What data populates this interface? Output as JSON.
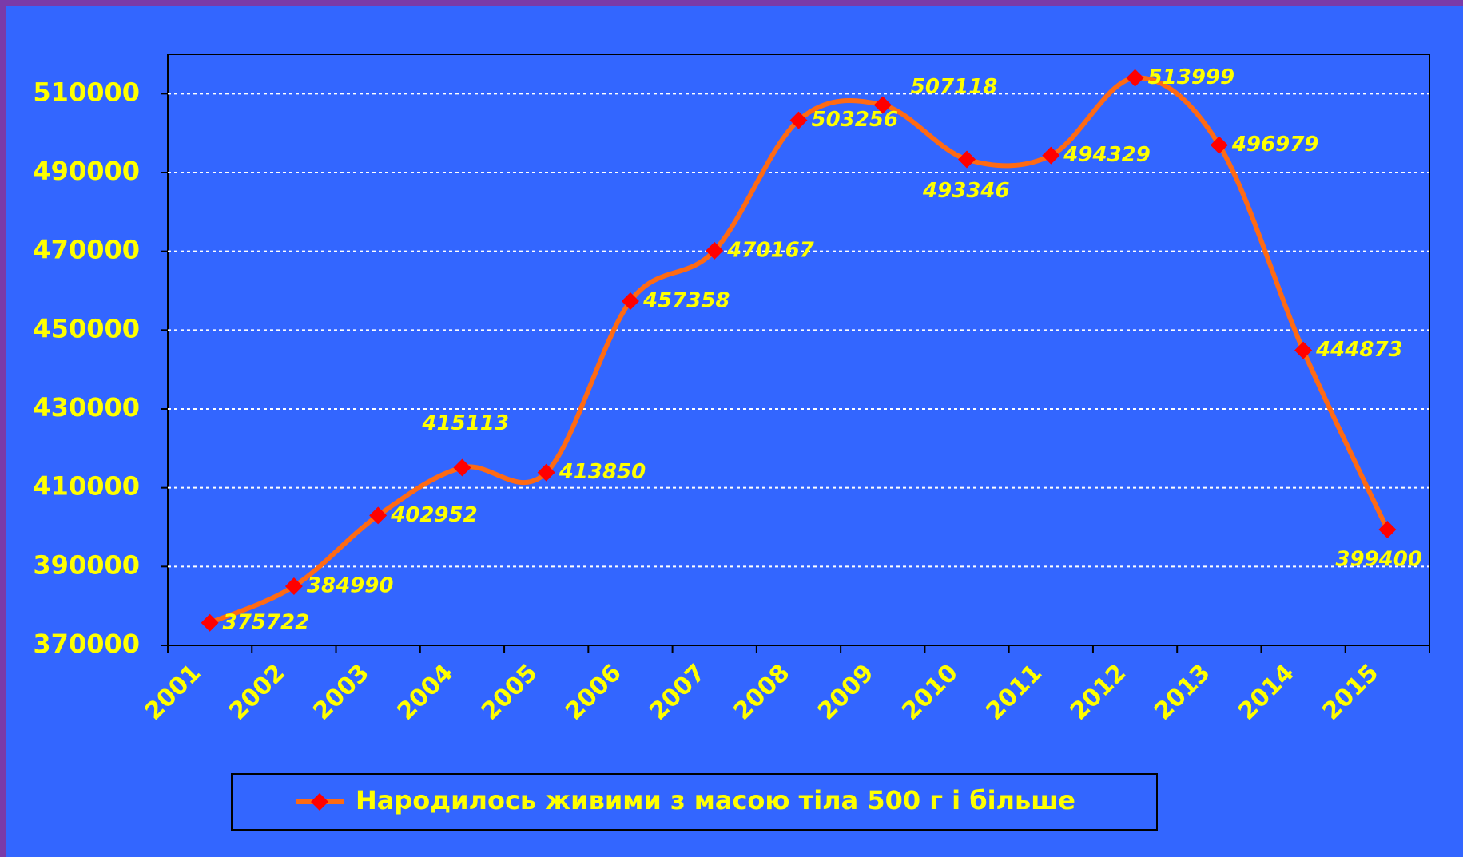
{
  "chart_data": {
    "type": "line",
    "categories": [
      "2001",
      "2002",
      "2003",
      "2004",
      "2005",
      "2006",
      "2007",
      "2008",
      "2009",
      "2010",
      "2011",
      "2012",
      "2013",
      "2014",
      "2015"
    ],
    "series": [
      {
        "name": "Народилось живими з масою тіла 500 г і більше",
        "color": "#ff6a13",
        "marker_color": "#ff0000",
        "values": [
          375722,
          384990,
          402952,
          415113,
          413850,
          457358,
          470167,
          503256,
          507118,
          493346,
          494329,
          513999,
          496979,
          444873,
          399400
        ]
      }
    ],
    "ylim": [
      370000,
      520000
    ],
    "yticks": [
      370000,
      390000,
      410000,
      430000,
      450000,
      470000,
      490000,
      510000
    ],
    "grid": true
  }
}
